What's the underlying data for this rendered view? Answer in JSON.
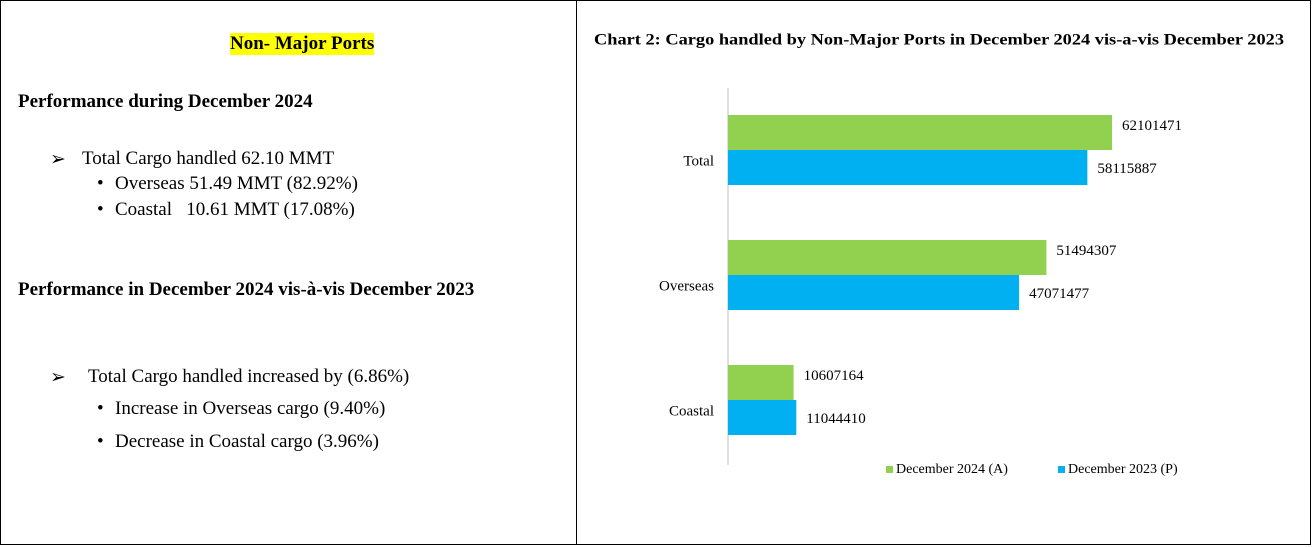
{
  "left": {
    "title": "Non- Major Ports",
    "sections": [
      {
        "heading": "Performance during December 2024",
        "items": [
          {
            "text": "Total Cargo handled 62.10 MMT",
            "sub": [
              "Overseas 51.49 MMT (82.92%)",
              "Coastal   10.61 MMT (17.08%)"
            ]
          }
        ]
      },
      {
        "heading": "Performance in December 2024 vis-à-vis December 2023",
        "items": [
          {
            "text": "Total Cargo handled increased by (6.86%)",
            "sub": [
              "Increase in Overseas cargo (9.40%)",
              "Decrease in Coastal cargo (3.96%)"
            ]
          }
        ]
      }
    ]
  },
  "chart_data": {
    "type": "barh",
    "title": "Chart 2: Cargo handled by Non-Major Ports in December 2024 vis-a-vis December 2023",
    "categories": [
      "Total",
      "Overseas",
      "Coastal"
    ],
    "series": [
      {
        "name": "December 2024 (A)",
        "color": "#92d050",
        "values": [
          62101471,
          51494307,
          10607164
        ]
      },
      {
        "name": "December 2023 (P)",
        "color": "#00b0f0",
        "values": [
          58115887,
          47071477,
          11044410
        ]
      }
    ],
    "legend": "bottom"
  }
}
